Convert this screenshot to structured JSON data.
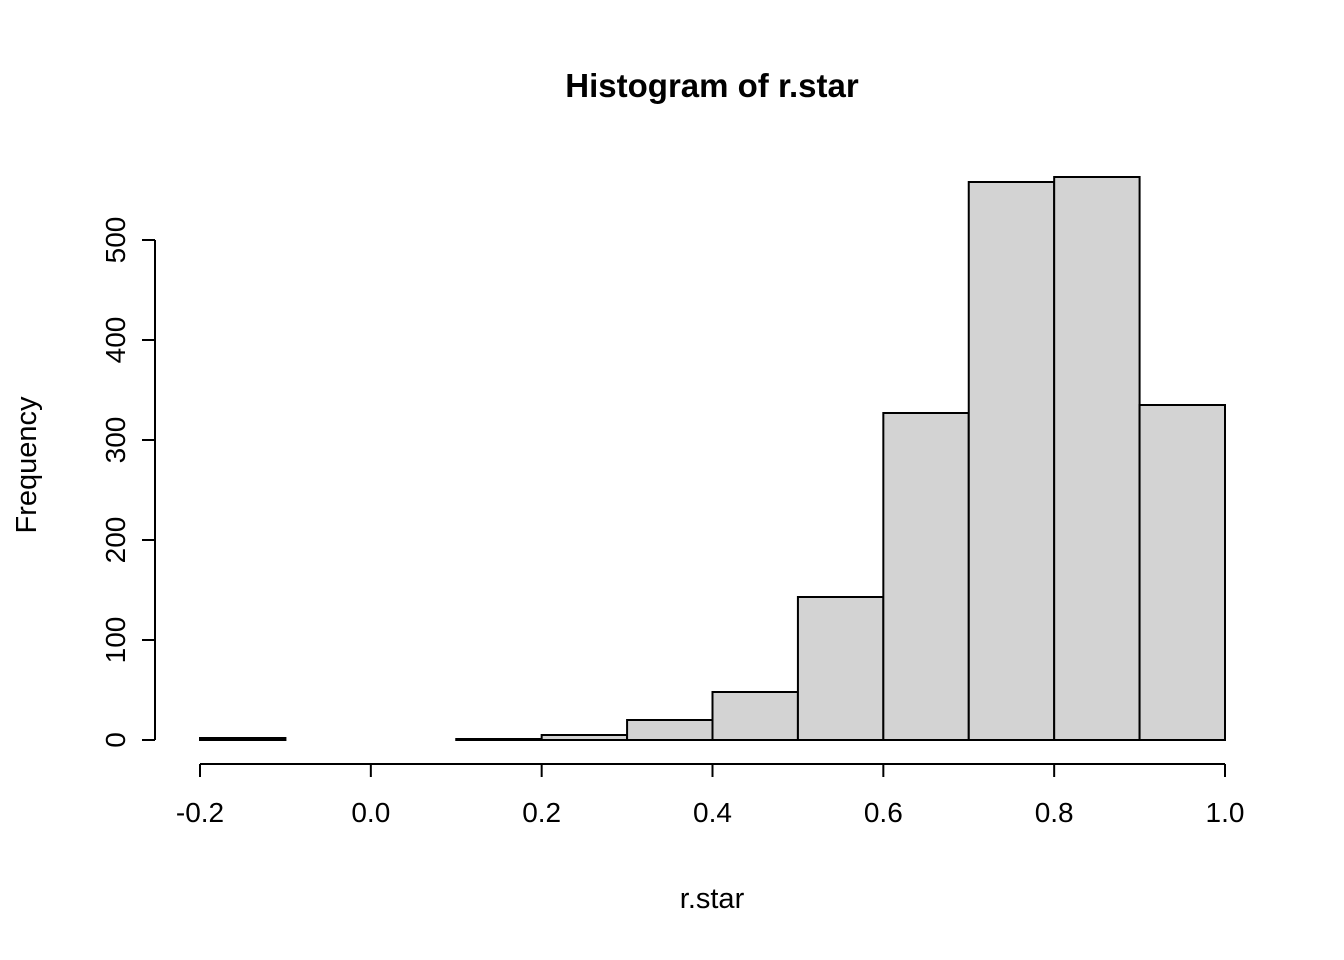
{
  "page_title": "Histogram of r.star",
  "chart_data": {
    "type": "bar",
    "subtype": "histogram",
    "title": "Histogram of r.star",
    "xlabel": "r.star",
    "ylabel": "Frequency",
    "xlim": [
      -0.2,
      1.0
    ],
    "ylim": [
      0,
      560
    ],
    "x_ticks": [
      "-0.2",
      "0.0",
      "0.2",
      "0.4",
      "0.6",
      "0.8",
      "1.0"
    ],
    "y_ticks": [
      "0",
      "100",
      "200",
      "300",
      "400",
      "500"
    ],
    "bin_width": 0.1,
    "bins": [
      {
        "x0": -0.2,
        "x1": -0.1,
        "count": 2
      },
      {
        "x0": -0.1,
        "x1": 0.0,
        "count": 0
      },
      {
        "x0": 0.0,
        "x1": 0.1,
        "count": 0
      },
      {
        "x0": 0.1,
        "x1": 0.2,
        "count": 1
      },
      {
        "x0": 0.2,
        "x1": 0.3,
        "count": 5
      },
      {
        "x0": 0.3,
        "x1": 0.4,
        "count": 20
      },
      {
        "x0": 0.4,
        "x1": 0.5,
        "count": 48
      },
      {
        "x0": 0.5,
        "x1": 0.6,
        "count": 143
      },
      {
        "x0": 0.6,
        "x1": 0.7,
        "count": 327
      },
      {
        "x0": 0.7,
        "x1": 0.8,
        "count": 558
      },
      {
        "x0": 0.8,
        "x1": 0.9,
        "count": 563
      },
      {
        "x0": 0.9,
        "x1": 1.0,
        "count": 335
      }
    ],
    "bar_fill": "#d3d3d3",
    "bar_stroke": "#000000",
    "axis_color": "#000000",
    "background": "#ffffff",
    "grid": false,
    "legend": "none"
  }
}
